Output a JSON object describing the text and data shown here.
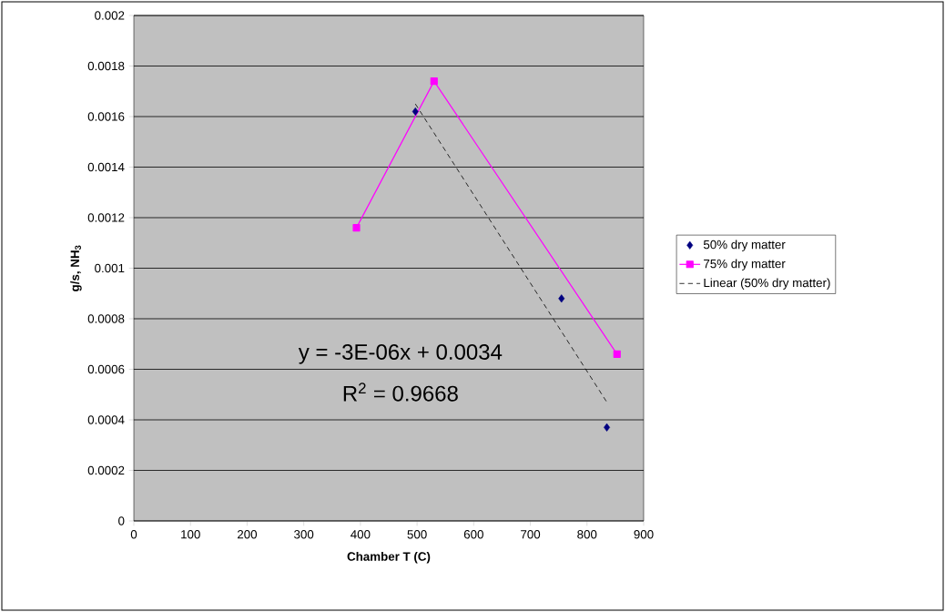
{
  "chart_data": {
    "type": "scatter",
    "xlabel": "Chamber T (C)",
    "ylabel": "g/s, NH$_{3}$",
    "xlim": [
      0,
      900
    ],
    "xticks": [
      0,
      100,
      200,
      300,
      400,
      500,
      600,
      700,
      800,
      900
    ],
    "ylim": [
      0,
      0.002
    ],
    "yticks": [
      0,
      0.0002,
      0.0004,
      0.0006,
      0.0008,
      0.001,
      0.0012,
      0.0014,
      0.0016,
      0.0018,
      0.002
    ],
    "grid": "y",
    "legend": "right",
    "annotations": [
      "y = -3E-06x + 0.0034",
      "R$^{2}$ = 0.9668"
    ],
    "series": [
      {
        "name": "50% dry matter",
        "marker": "diamond",
        "color": "#000080",
        "x": [
          497,
          755,
          835
        ],
        "values": [
          0.00162,
          0.00088,
          0.00037
        ]
      },
      {
        "name": "75% dry matter",
        "type": "line",
        "marker": "square",
        "color": "#ff00ff",
        "x": [
          393,
          530,
          853
        ],
        "values": [
          0.00116,
          0.00174,
          0.00066
        ]
      },
      {
        "name": "Linear (50% dry matter)",
        "type": "line",
        "marker": "none",
        "line_style": "dashed",
        "color": "#000000",
        "x": [
          497,
          835
        ],
        "values": [
          0.00165,
          0.00047
        ]
      }
    ]
  }
}
